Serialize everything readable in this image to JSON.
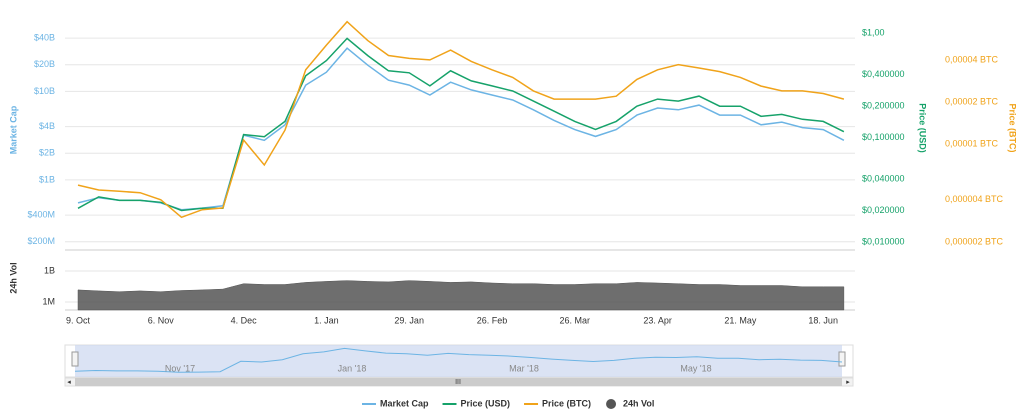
{
  "chart_data": [
    {
      "type": "line",
      "log": true,
      "grid": true,
      "ylabel": "Market Cap",
      "y2label": "Price (USD)",
      "y3label": "Price (BTC)",
      "categories": [
        "9. Oct",
        null,
        null,
        null,
        "6. Nov",
        null,
        null,
        null,
        "4. Dec",
        null,
        null,
        null,
        "1. Jan",
        null,
        null,
        null,
        "29. Jan",
        null,
        null,
        null,
        "26. Feb",
        null,
        null,
        null,
        "26. Mar",
        null,
        null,
        null,
        "23. Apr",
        null,
        null,
        null,
        "21. May",
        null,
        null,
        null,
        "18. Jun",
        null
      ],
      "ylim": [
        170000000,
        79000000000
      ],
      "yticks": [
        {
          "value": 200000000,
          "label": "$200M"
        },
        {
          "value": 400000000,
          "label": "$400M"
        },
        {
          "value": 1000000000,
          "label": "$1B"
        },
        {
          "value": 2000000000,
          "label": "$2B"
        },
        {
          "value": 4000000000,
          "label": "$4B"
        },
        {
          "value": 10000000000,
          "label": "$10B"
        },
        {
          "value": 20000000000,
          "label": "$20B"
        },
        {
          "value": 40000000000,
          "label": "$40B"
        }
      ],
      "y2lim": [
        0.00875,
        1.6
      ],
      "y2ticks": [
        {
          "value": 0.01,
          "label": "$0,010000"
        },
        {
          "value": 0.02,
          "label": "$0,020000"
        },
        {
          "value": 0.04,
          "label": "$0,040000"
        },
        {
          "value": 0.1,
          "label": "$0,100000"
        },
        {
          "value": 0.2,
          "label": "$0,200000"
        },
        {
          "value": 0.4,
          "label": "$0,400000"
        },
        {
          "value": 1,
          "label": "$1,00"
        }
      ],
      "y3lim": [
        1.81e-06,
        8.8e-05
      ],
      "y3ticks": [
        {
          "value": 2e-06,
          "label": "0,000002 BTC"
        },
        {
          "value": 4e-06,
          "label": "0,000004 BTC"
        },
        {
          "value": 1e-05,
          "label": "0,00001 BTC"
        },
        {
          "value": 2e-05,
          "label": "0,00002 BTC"
        },
        {
          "value": 4e-05,
          "label": "0,00004 BTC"
        }
      ],
      "series": [
        {
          "name": "Market Cap",
          "color": "#6cb4e4",
          "axis": "y",
          "values": [
            550000000,
            630000000,
            590000000,
            590000000,
            550000000,
            460000000,
            480000000,
            510000000,
            3200000000,
            2800000000,
            4200000000,
            11800000000,
            16500000000,
            30800000000,
            19800000000,
            13400000000,
            11800000000,
            9100000000,
            12700000000,
            10400000000,
            9100000000,
            8000000000,
            6200000000,
            4700000000,
            3700000000,
            3100000000,
            3700000000,
            5400000000,
            6500000000,
            6200000000,
            7000000000,
            5400000000,
            5400000000,
            4200000000,
            4500000000,
            3900000000,
            3700000000,
            2800000000
          ]
        },
        {
          "name": "Price (USD)",
          "color": "#16a26a",
          "axis": "y2",
          "values": [
            0.021,
            0.027,
            0.025,
            0.025,
            0.024,
            0.02,
            0.021,
            0.021,
            0.107,
            0.102,
            0.143,
            0.391,
            0.547,
            0.894,
            0.611,
            0.437,
            0.418,
            0.313,
            0.437,
            0.35,
            0.313,
            0.28,
            0.224,
            0.179,
            0.143,
            0.12,
            0.143,
            0.2,
            0.234,
            0.224,
            0.25,
            0.2,
            0.2,
            0.16,
            0.167,
            0.15,
            0.143,
            0.114
          ]
        },
        {
          "name": "Price (BTC)",
          "color": "#f0a31a",
          "axis": "y3",
          "values": [
            5.1e-06,
            4.7e-06,
            4.6e-06,
            4.5e-06,
            4e-06,
            3e-06,
            3.4e-06,
            3.5e-06,
            1.07e-05,
            7.1e-06,
            1.26e-05,
            3.4e-05,
            5.1e-05,
            7.5e-05,
            5.5e-05,
            4.3e-05,
            4.1e-05,
            4e-05,
            4.7e-05,
            3.9e-05,
            3.4e-05,
            3e-05,
            2.4e-05,
            2.1e-05,
            2.1e-05,
            2.1e-05,
            2.2e-05,
            2.9e-05,
            3.4e-05,
            3.7e-05,
            3.5e-05,
            3.3e-05,
            3e-05,
            2.6e-05,
            2.4e-05,
            2.4e-05,
            2.3e-05,
            2.1e-05
          ]
        }
      ]
    },
    {
      "type": "area",
      "log": true,
      "ylabel": "24h Vol",
      "ylim": [
        170000,
        70000000000
      ],
      "yticks": [
        {
          "value": 1000000,
          "label": "1M"
        },
        {
          "value": 1000000000,
          "label": "1B"
        }
      ],
      "series": [
        {
          "name": "24h Vol",
          "color": "#555555",
          "values": [
            15000000,
            12000000,
            10000000,
            12000000,
            10000000,
            13000000,
            15000000,
            18000000,
            60000000,
            50000000,
            50000000,
            80000000,
            100000000,
            120000000,
            100000000,
            90000000,
            120000000,
            100000000,
            80000000,
            90000000,
            70000000,
            60000000,
            60000000,
            50000000,
            50000000,
            60000000,
            60000000,
            80000000,
            70000000,
            60000000,
            50000000,
            50000000,
            40000000,
            40000000,
            40000000,
            30000000,
            30000000,
            30000000
          ]
        }
      ]
    }
  ],
  "navigator": {
    "labels": [
      "Nov '17",
      "Jan '18",
      "Mar '18",
      "May '18"
    ]
  }
}
